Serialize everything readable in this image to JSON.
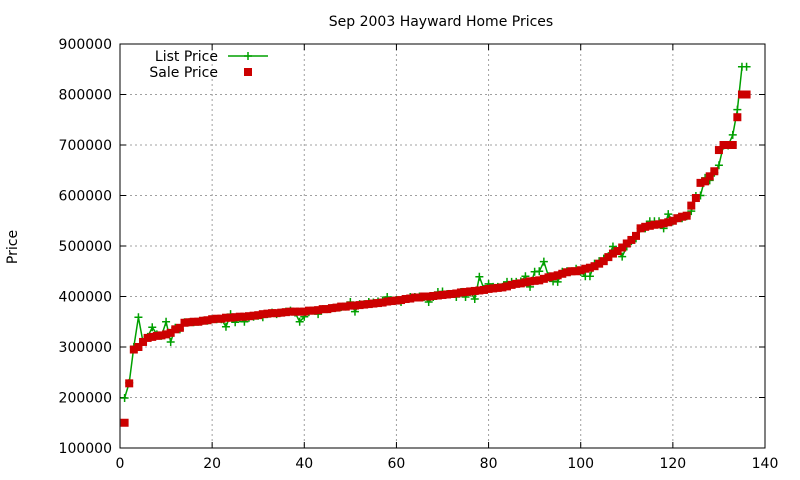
{
  "chart_data": {
    "type": "line",
    "title": "Sep 2003 Hayward Home Prices",
    "xlabel": "",
    "ylabel": "Price",
    "xlim": [
      0,
      140
    ],
    "ylim": [
      100000,
      900000
    ],
    "xticks": [
      0,
      20,
      40,
      60,
      80,
      100,
      120,
      140
    ],
    "yticks": [
      100000,
      200000,
      300000,
      400000,
      500000,
      600000,
      700000,
      800000,
      900000
    ],
    "grid": true,
    "legend_position": "top-left",
    "series": [
      {
        "name": "List Price",
        "style": "linespoints",
        "marker": "plus",
        "color": "#00a000",
        "x": [
          1,
          2,
          3,
          4,
          5,
          6,
          7,
          8,
          9,
          10,
          11,
          12,
          13,
          14,
          15,
          16,
          17,
          18,
          19,
          20,
          21,
          22,
          23,
          24,
          25,
          26,
          27,
          28,
          29,
          30,
          31,
          32,
          33,
          34,
          35,
          36,
          37,
          38,
          39,
          40,
          41,
          42,
          43,
          44,
          45,
          46,
          47,
          48,
          49,
          50,
          51,
          52,
          53,
          54,
          55,
          56,
          57,
          58,
          59,
          60,
          61,
          62,
          63,
          64,
          65,
          66,
          67,
          68,
          69,
          70,
          71,
          72,
          73,
          74,
          75,
          76,
          77,
          78,
          79,
          80,
          81,
          82,
          83,
          84,
          85,
          86,
          87,
          88,
          89,
          90,
          91,
          92,
          93,
          94,
          95,
          96,
          97,
          98,
          99,
          100,
          101,
          102,
          103,
          104,
          105,
          106,
          107,
          108,
          109,
          110,
          111,
          112,
          113,
          114,
          115,
          116,
          117,
          118,
          119,
          120,
          121,
          122,
          123,
          124,
          125,
          126,
          127,
          128,
          129,
          130,
          131,
          132,
          133,
          134,
          135,
          136
        ],
        "y": [
          199000,
          229000,
          300000,
          359000,
          310000,
          320000,
          339000,
          325000,
          322000,
          350000,
          310000,
          338000,
          335000,
          349000,
          349000,
          349000,
          350000,
          352000,
          352000,
          355000,
          355000,
          355000,
          340000,
          365000,
          349000,
          357000,
          350000,
          358000,
          360000,
          362000,
          359000,
          365000,
          368000,
          365000,
          368000,
          370000,
          372000,
          368000,
          350000,
          360000,
          369000,
          372000,
          365000,
          375000,
          375000,
          377000,
          378000,
          379000,
          380000,
          389000,
          370000,
          385000,
          385000,
          389000,
          388000,
          390000,
          392000,
          399000,
          392000,
          393000,
          389000,
          395000,
          399000,
          399000,
          400000,
          399000,
          389000,
          399000,
          409000,
          410000,
          405000,
          405000,
          399000,
          409000,
          399000,
          409000,
          395000,
          439000,
          415000,
          425000,
          419000,
          419000,
          419000,
          429000,
          429000,
          429000,
          430000,
          440000,
          419000,
          449000,
          450000,
          469000,
          440000,
          430000,
          429000,
          449000,
          450000,
          450000,
          455000,
          449000,
          440000,
          440000,
          465000,
          470000,
          475000,
          480000,
          499000,
          490000,
          479000,
          499000,
          510000,
          515000,
          535000,
          535000,
          549000,
          549000,
          549000,
          535000,
          563000,
          549000,
          555000,
          555000,
          559000,
          569000,
          599000,
          600000,
          635000,
          630000,
          645000,
          660000,
          699000,
          699000,
          720000,
          770000,
          855000,
          855000
        ]
      },
      {
        "name": "Sale Price",
        "style": "points",
        "marker": "square",
        "color": "#cc0000",
        "x": [
          1,
          2,
          3,
          4,
          5,
          6,
          7,
          8,
          9,
          10,
          11,
          12,
          13,
          14,
          15,
          16,
          17,
          18,
          19,
          20,
          21,
          22,
          23,
          24,
          25,
          26,
          27,
          28,
          29,
          30,
          31,
          32,
          33,
          34,
          35,
          36,
          37,
          38,
          39,
          40,
          41,
          42,
          43,
          44,
          45,
          46,
          47,
          48,
          49,
          50,
          51,
          52,
          53,
          54,
          55,
          56,
          57,
          58,
          59,
          60,
          61,
          62,
          63,
          64,
          65,
          66,
          67,
          68,
          69,
          70,
          71,
          72,
          73,
          74,
          75,
          76,
          77,
          78,
          79,
          80,
          81,
          82,
          83,
          84,
          85,
          86,
          87,
          88,
          89,
          90,
          91,
          92,
          93,
          94,
          95,
          96,
          97,
          98,
          99,
          100,
          101,
          102,
          103,
          104,
          105,
          106,
          107,
          108,
          109,
          110,
          111,
          112,
          113,
          114,
          115,
          116,
          117,
          118,
          119,
          120,
          121,
          122,
          123,
          124,
          125,
          126,
          127,
          128,
          129,
          130,
          131,
          132,
          133,
          134,
          135,
          136
        ],
        "y": [
          150000,
          228000,
          295000,
          300000,
          310000,
          318000,
          320000,
          322000,
          323000,
          325000,
          328000,
          335000,
          338000,
          348000,
          349000,
          350000,
          350000,
          352000,
          353000,
          355000,
          356000,
          356000,
          358000,
          358000,
          359000,
          360000,
          360000,
          361000,
          362000,
          363000,
          365000,
          366000,
          367000,
          367000,
          368000,
          369000,
          370000,
          370000,
          370000,
          370000,
          372000,
          372000,
          373000,
          375000,
          375000,
          377000,
          378000,
          380000,
          380000,
          382000,
          382000,
          383000,
          384000,
          385000,
          386000,
          387000,
          388000,
          390000,
          391000,
          392000,
          393000,
          395000,
          396000,
          398000,
          398000,
          400000,
          400000,
          401000,
          402000,
          403000,
          404000,
          405000,
          406000,
          408000,
          409000,
          410000,
          411000,
          412000,
          413000,
          415000,
          416000,
          417000,
          418000,
          420000,
          423000,
          425000,
          426000,
          428000,
          430000,
          431000,
          432000,
          435000,
          438000,
          440000,
          442000,
          445000,
          448000,
          450000,
          450000,
          452000,
          455000,
          457000,
          460000,
          465000,
          470000,
          478000,
          485000,
          490000,
          497000,
          505000,
          512000,
          520000,
          535000,
          538000,
          540000,
          542000,
          543000,
          545000,
          547000,
          550000,
          555000,
          558000,
          560000,
          580000,
          595000,
          625000,
          628000,
          638000,
          648000,
          690000,
          700000,
          700000,
          700000,
          755000,
          800000,
          800000
        ]
      }
    ]
  }
}
